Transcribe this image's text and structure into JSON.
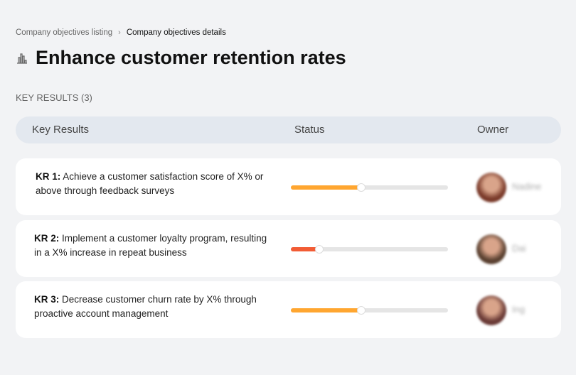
{
  "breadcrumb": {
    "parent": "Company objectives listing",
    "separator": "›",
    "current": "Company objectives details"
  },
  "page": {
    "title": "Enhance customer retention rates",
    "icon": "building-chart-icon"
  },
  "section_label": "KEY RESULTS (3)",
  "table": {
    "headers": [
      "Key Results",
      "Status",
      "Owner"
    ],
    "rows": [
      {
        "id": "KR 1:",
        "text": "Achieve a customer satisfaction score of X% or above through feedback surveys",
        "progress_percent": 45,
        "color": "#ffa630",
        "owner": "Nadine",
        "avatar_color": "#7a3a2a"
      },
      {
        "id": "KR 2:",
        "text": "Implement a customer loyalty program, resulting in a X% increase in repeat business",
        "progress_percent": 18,
        "color": "#f25c35",
        "owner": "Dai",
        "avatar_color": "#5a4030"
      },
      {
        "id": "KR 3:",
        "text": "Decrease customer churn rate by X% through proactive account management",
        "progress_percent": 45,
        "color": "#ffa630",
        "owner": "Ing",
        "avatar_color": "#6a3a36"
      }
    ]
  }
}
